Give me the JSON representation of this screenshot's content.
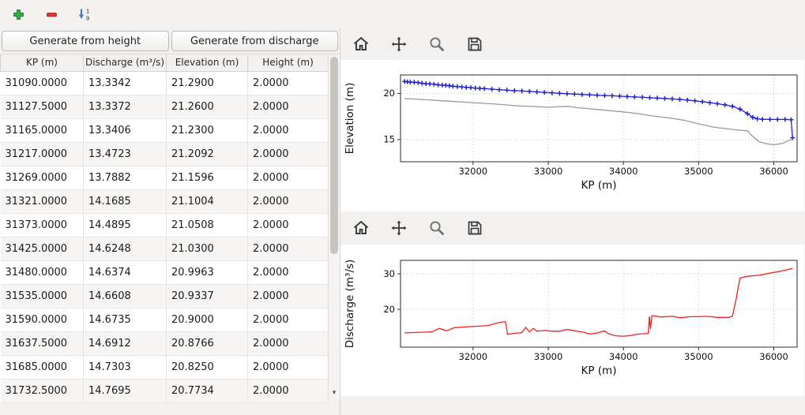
{
  "main_toolbar": {
    "add_button": {
      "icon": "plus-icon",
      "color": "#35b24a",
      "edge": "#1f7a30"
    },
    "remove_button": {
      "icon": "minus-icon",
      "color": "#e23b32",
      "edge": "#9e241d"
    },
    "sort_button": {
      "icon": "sort-ascending-icon",
      "color": "#4a78c8",
      "digit_top": "1",
      "digit_bottom": "9"
    }
  },
  "left_panel": {
    "generate_from_height_label": "Generate from height",
    "generate_from_discharge_label": "Generate from discharge",
    "table": {
      "columns": [
        "KP (m)",
        "Discharge (m³/s)",
        "Elevation (m)",
        "Height (m)"
      ],
      "rows": [
        [
          "31090.0000",
          "13.3342",
          "21.2900",
          "2.0000"
        ],
        [
          "31127.5000",
          "13.3372",
          "21.2600",
          "2.0000"
        ],
        [
          "31165.0000",
          "13.3406",
          "21.2300",
          "2.0000"
        ],
        [
          "31217.0000",
          "13.4723",
          "21.2092",
          "2.0000"
        ],
        [
          "31269.0000",
          "13.7882",
          "21.1596",
          "2.0000"
        ],
        [
          "31321.0000",
          "14.1685",
          "21.1004",
          "2.0000"
        ],
        [
          "31373.0000",
          "14.4895",
          "21.0508",
          "2.0000"
        ],
        [
          "31425.0000",
          "14.6248",
          "21.0300",
          "2.0000"
        ],
        [
          "31480.0000",
          "14.6374",
          "20.9963",
          "2.0000"
        ],
        [
          "31535.0000",
          "14.6608",
          "20.9337",
          "2.0000"
        ],
        [
          "31590.0000",
          "14.6735",
          "20.9000",
          "2.0000"
        ],
        [
          "31637.5000",
          "14.6912",
          "20.8766",
          "2.0000"
        ],
        [
          "31685.0000",
          "14.7303",
          "20.8250",
          "2.0000"
        ],
        [
          "31732.5000",
          "14.7695",
          "20.7734",
          "2.0000"
        ]
      ]
    }
  },
  "plot_toolbars": {
    "icons": [
      "home",
      "pan",
      "zoom",
      "save"
    ]
  },
  "chart_data": [
    {
      "type": "line",
      "title": "",
      "xlabel": "KP (m)",
      "ylabel": "Elevation (m)",
      "xlim": [
        31035,
        36310
      ],
      "ylim": [
        12.6,
        22.0
      ],
      "xticks": [
        32000,
        33000,
        34000,
        35000,
        36000
      ],
      "yticks": [
        15,
        20
      ],
      "grid": true,
      "legend": false,
      "series": [
        {
          "name": "elevation-profile",
          "color": "#2323cc",
          "marker": "+",
          "x": [
            31090,
            31127.5,
            31165,
            31217,
            31269,
            31321,
            31373,
            31425,
            31480,
            31535,
            31590,
            31637.5,
            31685,
            31732.5,
            31790,
            31850,
            31910,
            31970,
            32030,
            32090,
            32150,
            32250,
            32350,
            32450,
            32550,
            32650,
            32750,
            32850,
            32950,
            33050,
            33150,
            33250,
            33350,
            33450,
            33550,
            33650,
            33750,
            33850,
            33950,
            34050,
            34150,
            34250,
            34350,
            34450,
            34550,
            34650,
            34750,
            34850,
            34950,
            35050,
            35150,
            35250,
            35350,
            35450,
            35550,
            35650,
            35720,
            35780,
            35850,
            35950,
            36050,
            36150,
            36230,
            36250
          ],
          "y": [
            21.29,
            21.26,
            21.23,
            21.2092,
            21.1596,
            21.1004,
            21.0508,
            21.03,
            20.9963,
            20.9337,
            20.9,
            20.8766,
            20.825,
            20.7734,
            20.74,
            20.7,
            20.66,
            20.62,
            20.58,
            20.55,
            20.52,
            20.46,
            20.4,
            20.35,
            20.3,
            20.26,
            20.21,
            20.16,
            20.11,
            20.06,
            20.01,
            19.97,
            19.93,
            19.89,
            19.85,
            19.81,
            19.77,
            19.74,
            19.7,
            19.66,
            19.62,
            19.58,
            19.54,
            19.5,
            19.45,
            19.4,
            19.35,
            19.28,
            19.2,
            19.1,
            18.99,
            18.88,
            18.76,
            18.6,
            18.3,
            17.8,
            17.4,
            17.25,
            17.2,
            17.18,
            17.18,
            17.18,
            17.15,
            15.2
          ]
        },
        {
          "name": "bed-profile",
          "color": "#9a9a9a",
          "marker": null,
          "x": [
            31090,
            31300,
            31600,
            32000,
            32300,
            32600,
            32900,
            33000,
            33100,
            33250,
            33400,
            33600,
            33800,
            34000,
            34200,
            34400,
            34600,
            34800,
            35000,
            35200,
            35350,
            35500,
            35650,
            35700,
            35800,
            35900,
            36000,
            36100,
            36200,
            36250
          ],
          "y": [
            19.45,
            19.35,
            19.2,
            19.0,
            18.85,
            18.65,
            18.55,
            18.5,
            18.55,
            18.6,
            18.45,
            18.3,
            18.15,
            18.0,
            17.8,
            17.55,
            17.35,
            17.1,
            16.7,
            16.35,
            16.2,
            16.05,
            15.95,
            15.5,
            14.8,
            14.55,
            14.45,
            14.55,
            14.9,
            15.05
          ]
        }
      ]
    },
    {
      "type": "line",
      "title": "",
      "xlabel": "KP (m)",
      "ylabel": "Discharge (m³/s)",
      "xlim": [
        31035,
        36310
      ],
      "ylim": [
        9.3,
        33.8
      ],
      "xticks": [
        32000,
        33000,
        34000,
        35000,
        36000
      ],
      "yticks": [
        20,
        30
      ],
      "grid": true,
      "legend": false,
      "series": [
        {
          "name": "discharge",
          "color": "#ee2222",
          "marker": null,
          "x": [
            31090,
            31300,
            31450,
            31550,
            31650,
            31750,
            31900,
            32050,
            32200,
            32350,
            32430,
            32460,
            32550,
            32650,
            32700,
            32750,
            32800,
            32850,
            32950,
            33050,
            33150,
            33250,
            33350,
            33450,
            33550,
            33650,
            33750,
            33800,
            33900,
            34000,
            34100,
            34200,
            34300,
            34330,
            34345,
            34360,
            34380,
            34500,
            34650,
            34750,
            34900,
            35000,
            35100,
            35250,
            35400,
            35450,
            35500,
            35550,
            35650,
            35800,
            35950,
            36100,
            36250
          ],
          "y": [
            13.3,
            13.5,
            13.6,
            14.6,
            13.9,
            14.8,
            15.0,
            15.2,
            15.4,
            16.3,
            16.5,
            12.9,
            13.2,
            13.4,
            14.9,
            13.6,
            14.6,
            13.8,
            14.0,
            13.8,
            13.8,
            14.3,
            13.9,
            13.6,
            13.0,
            13.3,
            13.9,
            13.1,
            12.5,
            12.4,
            12.6,
            13.0,
            13.1,
            13.1,
            18.0,
            14.4,
            18.2,
            17.8,
            18.0,
            17.6,
            17.9,
            17.9,
            18.0,
            17.7,
            17.7,
            18.0,
            23.0,
            28.8,
            29.3,
            29.6,
            30.2,
            30.8,
            31.5
          ]
        }
      ]
    }
  ]
}
